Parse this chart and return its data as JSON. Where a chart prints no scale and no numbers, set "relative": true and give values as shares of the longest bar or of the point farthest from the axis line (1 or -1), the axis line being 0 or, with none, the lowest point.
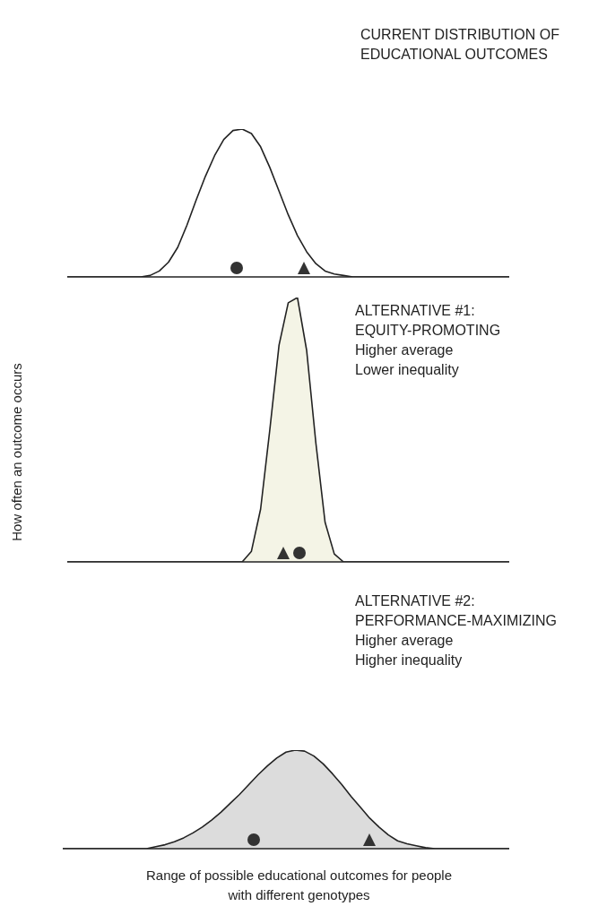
{
  "chart_data": [
    {
      "type": "line",
      "title": "CURRENT DISTRIBUTION OF EDUCATIONAL OUTCOMES",
      "relative": true,
      "tick_labels": false,
      "categories": [
        null,
        null,
        null,
        null,
        null,
        null,
        null,
        null,
        null,
        null,
        null,
        null,
        null,
        null,
        null,
        null,
        null,
        null,
        null,
        null,
        null,
        null,
        null,
        null,
        null,
        null,
        null,
        null,
        null,
        null,
        null,
        null,
        null,
        null,
        null,
        null,
        null,
        null,
        null,
        null,
        null,
        null,
        null,
        null,
        null,
        null,
        null,
        null,
        null
      ],
      "series": [
        {
          "color": "#222222",
          "values": [
            0,
            0,
            0,
            0,
            0,
            0,
            0,
            0,
            0,
            0.01,
            0.04,
            0.1,
            0.2,
            0.35,
            0.52,
            0.68,
            0.82,
            0.93,
            0.99,
            1,
            0.97,
            0.88,
            0.74,
            0.58,
            0.42,
            0.28,
            0.17,
            0.09,
            0.04,
            0.02,
            0.01,
            0,
            0,
            0,
            0,
            0,
            0,
            0,
            0,
            0,
            0,
            0,
            0,
            0,
            0,
            0,
            0,
            0,
            0
          ]
        }
      ]
    },
    {
      "type": "area",
      "title": "ALTERNATIVE #1:\nEQUITY-PROMOTING",
      "subtitle": "Higher average\nLower inequality",
      "ylabel": "How often an outcome occurs",
      "relative": true,
      "tick_labels": false,
      "categories": [
        null,
        null,
        null,
        null,
        null,
        null,
        null,
        null,
        null,
        null,
        null,
        null,
        null,
        null,
        null,
        null,
        null,
        null,
        null,
        null,
        null,
        null,
        null,
        null,
        null,
        null,
        null,
        null,
        null,
        null,
        null,
        null,
        null,
        null,
        null,
        null,
        null,
        null,
        null,
        null,
        null,
        null,
        null,
        null,
        null,
        null,
        null,
        null,
        null
      ],
      "series": [
        {
          "color": "#f4f4e6",
          "values": [
            0,
            0,
            0,
            0,
            0,
            0,
            0,
            0,
            0,
            0,
            0,
            0,
            0,
            0,
            0,
            0,
            0,
            0,
            0,
            0,
            0.04,
            0.2,
            0.5,
            0.82,
            0.98,
            1,
            0.8,
            0.45,
            0.15,
            0.03,
            0,
            0,
            0,
            0,
            0,
            0,
            0,
            0,
            0,
            0,
            0,
            0,
            0,
            0,
            0,
            0,
            0,
            0,
            0
          ]
        }
      ]
    },
    {
      "type": "area",
      "title": "ALTERNATIVE #2:\nPERFORMANCE-MAXIMIZING",
      "subtitle": "Higher average\nHigher inequality",
      "xlabel": "Range of possible educational outcomes for people\nwith different genotypes",
      "relative": true,
      "tick_labels": false,
      "categories": [
        null,
        null,
        null,
        null,
        null,
        null,
        null,
        null,
        null,
        null,
        null,
        null,
        null,
        null,
        null,
        null,
        null,
        null,
        null,
        null,
        null,
        null,
        null,
        null,
        null,
        null,
        null,
        null,
        null,
        null,
        null,
        null,
        null,
        null,
        null,
        null,
        null,
        null,
        null,
        null,
        null,
        null,
        null,
        null,
        null,
        null,
        null,
        null,
        null
      ],
      "series": [
        {
          "color": "#dcdcdc",
          "values": [
            0,
            0,
            0,
            0,
            0,
            0,
            0,
            0,
            0,
            0,
            0.02,
            0.04,
            0.07,
            0.11,
            0.16,
            0.22,
            0.29,
            0.37,
            0.46,
            0.55,
            0.65,
            0.75,
            0.84,
            0.92,
            0.98,
            1,
            0.99,
            0.94,
            0.86,
            0.76,
            0.65,
            0.53,
            0.42,
            0.31,
            0.22,
            0.14,
            0.08,
            0.05,
            0.03,
            0.01,
            0,
            0,
            0,
            0,
            0,
            0,
            0,
            0,
            0
          ]
        }
      ]
    }
  ]
}
